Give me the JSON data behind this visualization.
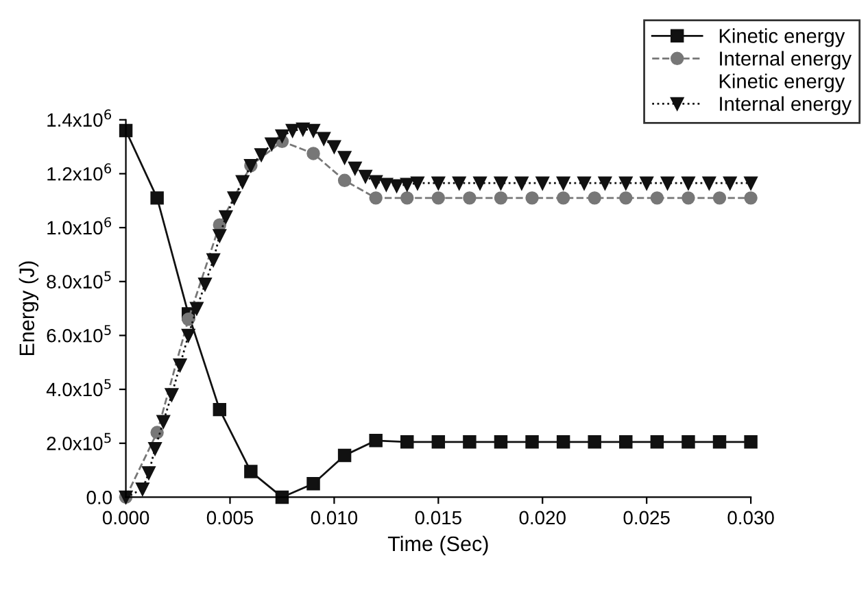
{
  "chart_data": {
    "type": "line",
    "xlabel": "Time (Sec)",
    "ylabel": "Energy (J)",
    "xlim": [
      0,
      0.03
    ],
    "xticks": [
      {
        "value": 0,
        "label": "0.000"
      },
      {
        "value": 0.005,
        "label": "0.005"
      },
      {
        "value": 0.01,
        "label": "0.010"
      },
      {
        "value": 0.015,
        "label": "0.015"
      },
      {
        "value": 0.02,
        "label": "0.020"
      },
      {
        "value": 0.025,
        "label": "0.025"
      },
      {
        "value": 0.03,
        "label": "0.030"
      }
    ],
    "ylim": [
      0,
      1400000
    ],
    "yticks": [
      {
        "value": 0,
        "label": "0.0"
      },
      {
        "value": 200000,
        "label": "2.0x10$^{5}$"
      },
      {
        "value": 400000,
        "label": "4.0x10$^{5}$"
      },
      {
        "value": 600000,
        "label": "6.0x10$^{5}$"
      },
      {
        "value": 800000,
        "label": "8.0x10$^{5}$"
      },
      {
        "value": 1000000,
        "label": "1.0x10$^{6}$"
      },
      {
        "value": 1200000,
        "label": "1.2x10$^{6}$"
      },
      {
        "value": 1400000,
        "label": "1.4x10$^{6}$"
      }
    ],
    "legend": "top right",
    "grid": false,
    "series": [
      {
        "name": "Kinetic energy",
        "color": "#111111",
        "marker": "square",
        "line_style": "solid",
        "x": [
          0,
          0.0015,
          0.003,
          0.0045,
          0.006,
          0.0075,
          0.009,
          0.0105,
          0.012,
          0.0135,
          0.015,
          0.0165,
          0.018,
          0.0195,
          0.021,
          0.0225,
          0.024,
          0.0255,
          0.027,
          0.0285,
          0.03
        ],
        "values": [
          1360000,
          1110000,
          680000,
          325000,
          95000,
          0,
          50000,
          155000,
          210000,
          205000,
          205000,
          205000,
          205000,
          205000,
          205000,
          205000,
          205000,
          205000,
          205000,
          205000,
          205000
        ]
      },
      {
        "name": "Internal energy",
        "color": "#777777",
        "marker": "circle",
        "line_style": "dashed",
        "x": [
          0,
          0.0015,
          0.003,
          0.0045,
          0.006,
          0.0075,
          0.009,
          0.0105,
          0.012,
          0.0135,
          0.015,
          0.0165,
          0.018,
          0.0195,
          0.021,
          0.0225,
          0.024,
          0.0255,
          0.027,
          0.0285,
          0.03
        ],
        "values": [
          0,
          240000,
          660000,
          1010000,
          1230000,
          1320000,
          1275000,
          1175000,
          1110000,
          1110000,
          1110000,
          1110000,
          1110000,
          1110000,
          1110000,
          1110000,
          1110000,
          1110000,
          1110000,
          1110000,
          1110000
        ]
      },
      {
        "name": "Kinetic energy"
      },
      {
        "name": "Internal energy",
        "color": "#111111",
        "marker": "triangle",
        "line_style": "dotted",
        "x": [
          0,
          0.0008,
          0.0011,
          0.0014,
          0.0018,
          0.0022,
          0.0026,
          0.003,
          0.0034,
          0.0038,
          0.0042,
          0.0045,
          0.0048,
          0.0052,
          0.0056,
          0.006,
          0.0065,
          0.007,
          0.0075,
          0.008,
          0.0085,
          0.009,
          0.0095,
          0.01,
          0.0105,
          0.011,
          0.0115,
          0.012,
          0.0125,
          0.013,
          0.0135,
          0.014,
          0.015,
          0.016,
          0.017,
          0.018,
          0.019,
          0.02,
          0.021,
          0.022,
          0.023,
          0.024,
          0.025,
          0.026,
          0.027,
          0.028,
          0.029,
          0.03
        ],
        "values": [
          0,
          30000,
          90000,
          180000,
          280000,
          380000,
          490000,
          600000,
          700000,
          790000,
          880000,
          970000,
          1040000,
          1110000,
          1170000,
          1230000,
          1270000,
          1310000,
          1340000,
          1360000,
          1365000,
          1360000,
          1330000,
          1300000,
          1260000,
          1220000,
          1190000,
          1170000,
          1160000,
          1155000,
          1160000,
          1165000,
          1165000,
          1165000,
          1165000,
          1165000,
          1165000,
          1165000,
          1165000,
          1165000,
          1165000,
          1165000,
          1165000,
          1165000,
          1165000,
          1165000,
          1165000,
          1165000
        ]
      }
    ]
  }
}
